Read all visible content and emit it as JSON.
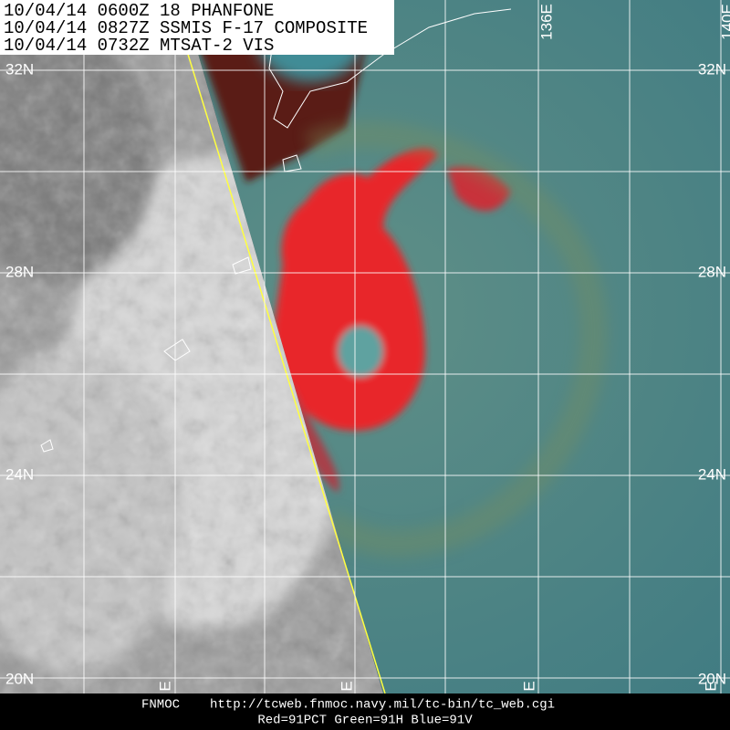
{
  "header": {
    "lines": [
      "10/04/14 0600Z  18 PHANFONE",
      "10/04/14 0827Z  SSMIS F-17 COMPOSITE",
      "10/04/14 0732Z  MTSAT-2 VIS"
    ]
  },
  "latitude_labels": {
    "left": [
      "32N",
      "28N",
      "24N",
      "20N"
    ],
    "right": [
      "32N",
      "28N",
      "24N",
      "20N"
    ]
  },
  "longitude_labels": {
    "top": [
      "136E",
      "140E"
    ],
    "bottom": [
      "E",
      "E",
      "E",
      "E"
    ]
  },
  "footer": {
    "source": "FNMOC",
    "url": "http://tcweb.fnmoc.navy.mil/tc-bin/tc_web.cgi",
    "channels": "Red=91PCT  Green=91H  Blue=91V"
  }
}
